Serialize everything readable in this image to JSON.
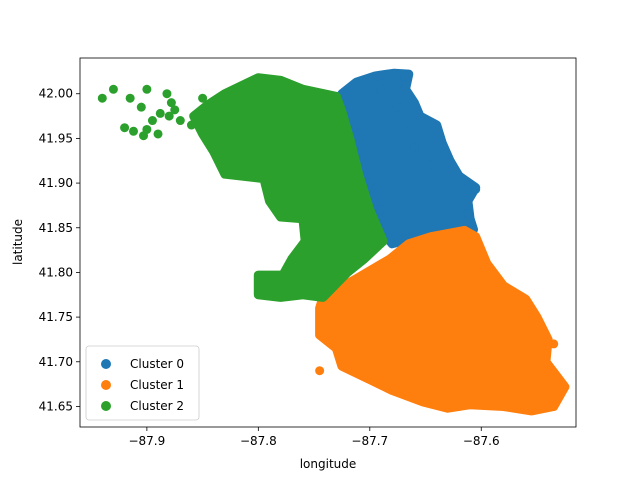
{
  "chart_data": {
    "type": "scatter",
    "title": "",
    "xlabel": "longitude",
    "ylabel": "latitude",
    "xlim": [
      -87.96,
      -87.515
    ],
    "ylim": [
      41.627,
      42.04
    ],
    "xticks": [
      -87.9,
      -87.8,
      -87.7,
      -87.6
    ],
    "xtick_labels": [
      "−87.9",
      "−87.8",
      "−87.7",
      "−87.6"
    ],
    "yticks": [
      41.65,
      41.7,
      41.75,
      41.8,
      41.85,
      41.9,
      41.95,
      42.0
    ],
    "ytick_labels": [
      "41.65",
      "41.70",
      "41.75",
      "41.80",
      "41.85",
      "41.90",
      "41.95",
      "42.00"
    ],
    "grid": false,
    "legend_position": "lower-left",
    "series": [
      {
        "name": "Cluster 0",
        "color": "#1f77b4",
        "region": [
          [
            -87.725,
            42.0
          ],
          [
            -87.712,
            42.013
          ],
          [
            -87.695,
            42.02
          ],
          [
            -87.678,
            42.023
          ],
          [
            -87.665,
            42.022
          ],
          [
            -87.668,
            42.005
          ],
          [
            -87.66,
            41.99
          ],
          [
            -87.655,
            41.975
          ],
          [
            -87.64,
            41.965
          ],
          [
            -87.635,
            41.945
          ],
          [
            -87.628,
            41.925
          ],
          [
            -87.62,
            41.908
          ],
          [
            -87.605,
            41.895
          ],
          [
            -87.612,
            41.88
          ],
          [
            -87.61,
            41.86
          ],
          [
            -87.607,
            41.848
          ],
          [
            -87.623,
            41.845
          ],
          [
            -87.655,
            41.84
          ],
          [
            -87.68,
            41.832
          ],
          [
            -87.695,
            41.855
          ],
          [
            -87.703,
            41.88
          ],
          [
            -87.712,
            41.915
          ],
          [
            -87.72,
            41.945
          ],
          [
            -87.728,
            41.975
          ]
        ],
        "sample_points": [
          [
            -87.663,
            41.962
          ],
          [
            -87.66,
            41.94
          ],
          [
            -87.646,
            41.92
          ],
          [
            -87.636,
            41.9
          ],
          [
            -87.605,
            41.893
          ],
          [
            -87.612,
            41.866
          ],
          [
            -87.69,
            41.87
          ],
          [
            -87.7,
            41.9
          ],
          [
            -87.675,
            41.985
          ],
          [
            -87.69,
            42.005
          ],
          [
            -87.668,
            42.02
          ]
        ]
      },
      {
        "name": "Cluster 1",
        "color": "#ff7f0e",
        "region": [
          [
            -87.742,
            41.772
          ],
          [
            -87.712,
            41.793
          ],
          [
            -87.682,
            41.815
          ],
          [
            -87.665,
            41.832
          ],
          [
            -87.645,
            41.84
          ],
          [
            -87.615,
            41.847
          ],
          [
            -87.605,
            41.84
          ],
          [
            -87.595,
            41.81
          ],
          [
            -87.58,
            41.785
          ],
          [
            -87.56,
            41.77
          ],
          [
            -87.55,
            41.75
          ],
          [
            -87.54,
            41.725
          ],
          [
            -87.542,
            41.7
          ],
          [
            -87.525,
            41.672
          ],
          [
            -87.535,
            41.65
          ],
          [
            -87.555,
            41.645
          ],
          [
            -87.58,
            41.65
          ],
          [
            -87.61,
            41.652
          ],
          [
            -87.63,
            41.648
          ],
          [
            -87.652,
            41.655
          ],
          [
            -87.68,
            41.668
          ],
          [
            -87.7,
            41.68
          ],
          [
            -87.725,
            41.695
          ],
          [
            -87.73,
            41.715
          ],
          [
            -87.745,
            41.73
          ],
          [
            -87.745,
            41.76
          ]
        ],
        "sample_points": [
          [
            -87.745,
            41.69
          ],
          [
            -87.7,
            41.69
          ],
          [
            -87.692,
            41.682
          ],
          [
            -87.635,
            41.66
          ],
          [
            -87.62,
            41.65
          ],
          [
            -87.59,
            41.66
          ],
          [
            -87.555,
            41.65
          ],
          [
            -87.535,
            41.65
          ],
          [
            -87.56,
            41.69
          ],
          [
            -87.548,
            41.7
          ],
          [
            -87.535,
            41.72
          ],
          [
            -87.57,
            41.68
          ],
          [
            -87.6,
            41.69
          ],
          [
            -87.58,
            41.665
          ]
        ]
      },
      {
        "name": "Cluster 2",
        "color": "#2ca02c",
        "region": [
          [
            -87.83,
            42.0
          ],
          [
            -87.8,
            42.018
          ],
          [
            -87.78,
            42.015
          ],
          [
            -87.76,
            42.005
          ],
          [
            -87.73,
            41.997
          ],
          [
            -87.725,
            41.98
          ],
          [
            -87.718,
            41.95
          ],
          [
            -87.71,
            41.91
          ],
          [
            -87.7,
            41.87
          ],
          [
            -87.688,
            41.835
          ],
          [
            -87.705,
            41.815
          ],
          [
            -87.72,
            41.8
          ],
          [
            -87.742,
            41.772
          ],
          [
            -87.76,
            41.775
          ],
          [
            -87.78,
            41.772
          ],
          [
            -87.8,
            41.775
          ],
          [
            -87.8,
            41.797
          ],
          [
            -87.778,
            41.797
          ],
          [
            -87.77,
            41.815
          ],
          [
            -87.758,
            41.835
          ],
          [
            -87.76,
            41.86
          ],
          [
            -87.78,
            41.862
          ],
          [
            -87.79,
            41.88
          ],
          [
            -87.795,
            41.905
          ],
          [
            -87.83,
            41.91
          ],
          [
            -87.84,
            41.935
          ],
          [
            -87.85,
            41.955
          ],
          [
            -87.858,
            41.975
          ],
          [
            -87.845,
            41.988
          ]
        ],
        "sample_points": [
          [
            -87.94,
            41.995
          ],
          [
            -87.93,
            42.005
          ],
          [
            -87.915,
            41.995
          ],
          [
            -87.905,
            41.985
          ],
          [
            -87.895,
            41.97
          ],
          [
            -87.888,
            41.978
          ],
          [
            -87.88,
            41.975
          ],
          [
            -87.87,
            41.97
          ],
          [
            -87.9,
            41.96
          ],
          [
            -87.89,
            41.955
          ],
          [
            -87.912,
            41.958
          ],
          [
            -87.92,
            41.962
          ],
          [
            -87.903,
            41.953
          ],
          [
            -87.882,
            42.0
          ],
          [
            -87.878,
            41.99
          ],
          [
            -87.86,
            41.965
          ],
          [
            -87.875,
            41.982
          ],
          [
            -87.85,
            41.995
          ],
          [
            -87.84,
            41.97
          ],
          [
            -87.9,
            42.005
          ]
        ]
      }
    ]
  }
}
